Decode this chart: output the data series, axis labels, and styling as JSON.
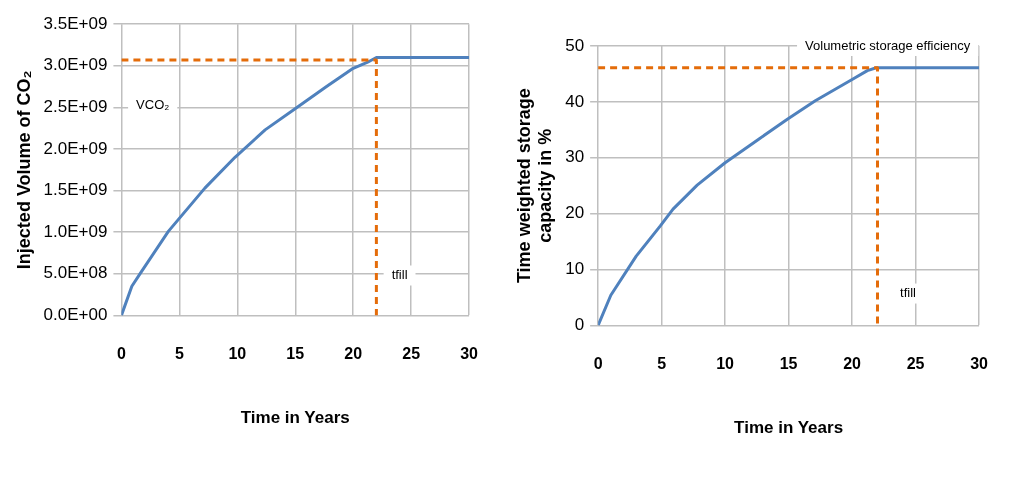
{
  "chart_data": [
    {
      "type": "line",
      "ylabel": "Injected Volume of CO₂",
      "xlabel": "Time in Years",
      "xlim": [
        0,
        30
      ],
      "xticks": [
        0,
        5,
        10,
        15,
        20,
        25,
        30
      ],
      "ylim": [
        0,
        3500000000
      ],
      "yticks": [
        {
          "value": 0,
          "label": "0.0E+00"
        },
        {
          "value": 500000000,
          "label": "5.0E+08"
        },
        {
          "value": 1000000000,
          "label": "1.0E+09"
        },
        {
          "value": 1500000000,
          "label": "1.5E+09"
        },
        {
          "value": 2000000000,
          "label": "2.0E+09"
        },
        {
          "value": 2500000000,
          "label": "2.5E+09"
        },
        {
          "value": 3000000000,
          "label": "3.0E+09"
        },
        {
          "value": 3500000000,
          "label": "3.5E+09"
        }
      ],
      "grid": true,
      "legend": false,
      "marker": "none",
      "series": [
        {
          "color": "#4f81bd",
          "line_style": "solid",
          "x": [
            0,
            0.9,
            1.7,
            4.05,
            7.2,
            9.8,
            12.4,
            15.05,
            17.7,
            20,
            21.2,
            22,
            30
          ],
          "values": [
            0,
            350000000,
            520000000,
            1010000000,
            1530000000,
            1900000000,
            2230000000,
            2490000000,
            2750000000,
            2970000000,
            3040000000,
            3100000000,
            3100000000
          ]
        },
        {
          "color": "#e46c0a",
          "line_style": "dashed",
          "x": [
            0,
            22,
            22
          ],
          "values": [
            3070000000,
            3070000000,
            0
          ]
        }
      ],
      "annotations": [
        "VCO₂",
        {
          "text": "tfill",
          "x": 24,
          "y": 480000000
        }
      ]
    },
    {
      "type": "line",
      "ylabel": "Time weighted storage capacity in %",
      "xlabel": "Time in Years",
      "xlim": [
        0,
        30
      ],
      "xticks": [
        0,
        5,
        10,
        15,
        20,
        25,
        30
      ],
      "ylim": [
        0,
        50
      ],
      "yticks": [
        0,
        10,
        20,
        30,
        40,
        50
      ],
      "grid": true,
      "legend": false,
      "marker": "none",
      "series": [
        {
          "color": "#4f81bd",
          "line_style": "solid",
          "x": [
            0,
            1,
            3,
            4.9,
            5.9,
            7.8,
            10,
            12.7,
            14.9,
            17.1,
            20,
            21.2,
            21.9,
            30
          ],
          "values": [
            0,
            5.4,
            12.4,
            17.8,
            20.8,
            25.1,
            29.1,
            33.4,
            36.9,
            40.2,
            44,
            45.6,
            46.1,
            46.1
          ]
        },
        {
          "color": "#e46c0a",
          "line_style": "dashed",
          "x": [
            0,
            22,
            22
          ],
          "values": [
            46.1,
            46.1,
            0
          ]
        }
      ],
      "annotations": [
        "Volumetric storage efficiency",
        {
          "text": "tfill",
          "x": 24.4,
          "y": 5.7
        }
      ]
    }
  ]
}
